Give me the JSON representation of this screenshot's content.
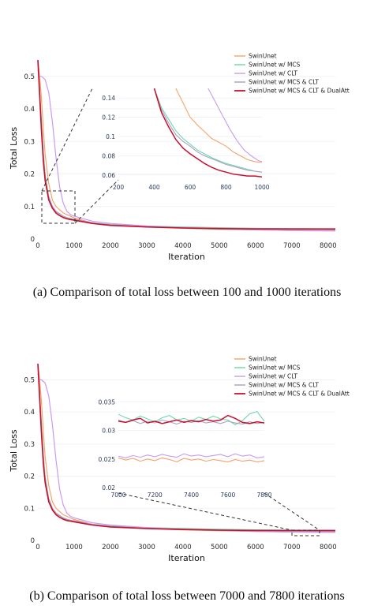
{
  "colors": {
    "swinunet": "#f4a46a",
    "mcs": "#6fd6ab",
    "clt": "#c79cf0",
    "mcs_clt": "#a9a0c4",
    "dualatt": "#c8102e"
  },
  "captions": {
    "a": "(a) Comparison of total loss between 100 and 1000 iterations",
    "b": "(b) Comparison of total loss between 7000 and 7800 iterations"
  },
  "chart_data": [
    {
      "type": "line",
      "xlabel": "Iteration",
      "ylabel": "Total Loss",
      "xlim": [
        0,
        8200
      ],
      "ylim": [
        0,
        0.56
      ],
      "x_ticks": [
        "0",
        "1000",
        "2000",
        "3000",
        "4000",
        "5000",
        "6000",
        "7000",
        "8000"
      ],
      "y_ticks": [
        "0",
        "0.1",
        "0.2",
        "0.3",
        "0.4",
        "0.5"
      ],
      "legend": [
        "SwinUnet",
        "SwinUnet w/ MCS",
        "SwinUnet w/ CLT",
        "SwinUnet w/ MCS & CLT",
        "SwinUnet w/ MCS & CLT & DualAtt"
      ],
      "series": [
        {
          "name": "SwinUnet",
          "x": [
            0,
            50,
            100,
            150,
            200,
            300,
            400,
            500,
            600,
            700,
            800,
            900,
            1000,
            1500,
            2000,
            3000,
            4000,
            5000,
            6000,
            7000,
            8200
          ],
          "y": [
            0.55,
            0.5,
            0.43,
            0.34,
            0.26,
            0.17,
            0.12,
            0.1,
            0.09,
            0.08,
            0.075,
            0.07,
            0.065,
            0.05,
            0.043,
            0.037,
            0.033,
            0.03,
            0.028,
            0.026,
            0.025
          ]
        },
        {
          "name": "SwinUnet w/ MCS",
          "x": [
            0,
            50,
            100,
            150,
            200,
            300,
            400,
            500,
            600,
            700,
            800,
            900,
            1000,
            1500,
            2000,
            3000,
            4000,
            5000,
            6000,
            7000,
            8200
          ],
          "y": [
            0.55,
            0.46,
            0.36,
            0.27,
            0.2,
            0.13,
            0.1,
            0.085,
            0.078,
            0.07,
            0.065,
            0.062,
            0.06,
            0.05,
            0.045,
            0.04,
            0.037,
            0.035,
            0.033,
            0.032,
            0.031
          ]
        },
        {
          "name": "SwinUnet w/ CLT",
          "x": [
            0,
            50,
            100,
            200,
            300,
            400,
            500,
            600,
            700,
            800,
            900,
            1000,
            1500,
            2000,
            3000,
            4000,
            5000,
            6000,
            7000,
            8200
          ],
          "y": [
            0.52,
            0.5,
            0.5,
            0.49,
            0.45,
            0.36,
            0.25,
            0.16,
            0.11,
            0.085,
            0.075,
            0.07,
            0.055,
            0.048,
            0.04,
            0.035,
            0.031,
            0.028,
            0.026,
            0.025
          ]
        },
        {
          "name": "SwinUnet w/ MCS & CLT",
          "x": [
            0,
            50,
            100,
            150,
            200,
            300,
            400,
            500,
            600,
            700,
            800,
            900,
            1000,
            1500,
            2000,
            3000,
            4000,
            5000,
            6000,
            7000,
            8200
          ],
          "y": [
            0.55,
            0.45,
            0.35,
            0.26,
            0.19,
            0.13,
            0.1,
            0.085,
            0.077,
            0.07,
            0.066,
            0.063,
            0.061,
            0.05,
            0.044,
            0.038,
            0.035,
            0.033,
            0.031,
            0.029,
            0.028
          ]
        },
        {
          "name": "SwinUnet w/ MCS & CLT & DualAtt",
          "x": [
            0,
            50,
            100,
            150,
            200,
            300,
            400,
            500,
            600,
            700,
            800,
            900,
            1000,
            1500,
            2000,
            3000,
            4000,
            5000,
            6000,
            7000,
            8200
          ],
          "y": [
            0.55,
            0.44,
            0.33,
            0.24,
            0.18,
            0.12,
            0.095,
            0.08,
            0.072,
            0.066,
            0.062,
            0.06,
            0.058,
            0.048,
            0.042,
            0.037,
            0.034,
            0.032,
            0.031,
            0.031,
            0.031
          ]
        }
      ],
      "inset": {
        "xlim": [
          200,
          1000
        ],
        "ylim": [
          0.055,
          0.15
        ],
        "x_ticks": [
          "200",
          "400",
          "600",
          "800",
          "1000"
        ],
        "y_ticks": [
          "0.06",
          "0.08",
          "0.1",
          "0.12",
          "0.14"
        ],
        "series": [
          {
            "name": "SwinUnet",
            "x": [
              520,
              560,
              600,
              640,
              680,
              720,
              760,
              800,
              840,
              880,
              920,
              960,
              1000
            ],
            "y": [
              0.15,
              0.135,
              0.12,
              0.112,
              0.105,
              0.098,
              0.094,
              0.09,
              0.084,
              0.08,
              0.076,
              0.074,
              0.073
            ]
          },
          {
            "name": "SwinUnet w/ MCS",
            "x": [
              400,
              440,
              480,
              520,
              560,
              600,
              640,
              680,
              720,
              760,
              800,
              840,
              880,
              920,
              960,
              1000
            ],
            "y": [
              0.15,
              0.13,
              0.118,
              0.106,
              0.098,
              0.092,
              0.086,
              0.082,
              0.078,
              0.075,
              0.072,
              0.07,
              0.068,
              0.066,
              0.064,
              0.063
            ]
          },
          {
            "name": "SwinUnet w/ CLT",
            "x": [
              700,
              740,
              780,
              820,
              860,
              900,
              940,
              980,
              1000
            ],
            "y": [
              0.15,
              0.136,
              0.122,
              0.108,
              0.096,
              0.086,
              0.08,
              0.075,
              0.074
            ]
          },
          {
            "name": "SwinUnet w/ MCS & CLT",
            "x": [
              400,
              440,
              480,
              520,
              560,
              600,
              640,
              680,
              720,
              760,
              800,
              840,
              880,
              920,
              960,
              1000
            ],
            "y": [
              0.15,
              0.128,
              0.114,
              0.102,
              0.095,
              0.09,
              0.084,
              0.08,
              0.077,
              0.074,
              0.071,
              0.069,
              0.067,
              0.065,
              0.064,
              0.063
            ]
          },
          {
            "name": "SwinUnet w/ MCS & CLT & DualAtt",
            "x": [
              400,
              440,
              480,
              520,
              560,
              600,
              640,
              680,
              720,
              760,
              800,
              840,
              880,
              920,
              960,
              1000
            ],
            "y": [
              0.15,
              0.125,
              0.11,
              0.097,
              0.088,
              0.082,
              0.077,
              0.072,
              0.068,
              0.065,
              0.063,
              0.061,
              0.06,
              0.059,
              0.059,
              0.058
            ]
          }
        ]
      }
    },
    {
      "type": "line",
      "xlabel": "Iteration",
      "ylabel": "Total Loss",
      "xlim": [
        0,
        8200
      ],
      "ylim": [
        0,
        0.56
      ],
      "x_ticks": [
        "0",
        "1000",
        "2000",
        "3000",
        "4000",
        "5000",
        "6000",
        "7000",
        "8000"
      ],
      "y_ticks": [
        "0",
        "0.1",
        "0.2",
        "0.3",
        "0.4",
        "0.5"
      ],
      "legend": [
        "SwinUnet",
        "SwinUnet w/ MCS",
        "SwinUnet w/ CLT",
        "SwinUnet w/ MCS & CLT",
        "SwinUnet w/ MCS & CLT & DualAtt"
      ],
      "series_ref": "same as chart 1",
      "inset": {
        "xlim": [
          7000,
          7800
        ],
        "ylim": [
          0.02,
          0.036
        ],
        "x_ticks": [
          "7000",
          "7200",
          "7400",
          "7600",
          "7800"
        ],
        "y_ticks": [
          "0.02",
          "0.025",
          "0.03",
          "0.035"
        ],
        "series": [
          {
            "name": "SwinUnet",
            "x": [
              7000,
              7040,
              7080,
              7120,
              7160,
              7200,
              7240,
              7280,
              7320,
              7360,
              7400,
              7440,
              7480,
              7520,
              7560,
              7600,
              7640,
              7680,
              7720,
              7760,
              7800
            ],
            "y": [
              0.0252,
              0.0248,
              0.0251,
              0.0246,
              0.025,
              0.0247,
              0.0252,
              0.0249,
              0.0245,
              0.0251,
              0.0248,
              0.025,
              0.0246,
              0.0249,
              0.0247,
              0.0245,
              0.0249,
              0.0246,
              0.0248,
              0.0245,
              0.0247
            ]
          },
          {
            "name": "SwinUnet w/ MCS",
            "x": [
              7000,
              7040,
              7080,
              7120,
              7160,
              7200,
              7240,
              7280,
              7320,
              7360,
              7400,
              7440,
              7480,
              7520,
              7560,
              7600,
              7640,
              7680,
              7720,
              7760,
              7800
            ],
            "y": [
              0.0328,
              0.0322,
              0.0318,
              0.0325,
              0.032,
              0.0315,
              0.0322,
              0.0326,
              0.0318,
              0.0321,
              0.0316,
              0.0323,
              0.0319,
              0.0325,
              0.032,
              0.0318,
              0.031,
              0.0317,
              0.0329,
              0.0333,
              0.0316
            ]
          },
          {
            "name": "SwinUnet w/ CLT",
            "x": [
              7000,
              7040,
              7080,
              7120,
              7160,
              7200,
              7240,
              7280,
              7320,
              7360,
              7400,
              7440,
              7480,
              7520,
              7560,
              7600,
              7640,
              7680,
              7720,
              7760,
              7800
            ],
            "y": [
              0.0255,
              0.0252,
              0.0256,
              0.0253,
              0.0257,
              0.0254,
              0.0258,
              0.0255,
              0.0253,
              0.0259,
              0.0255,
              0.0257,
              0.0254,
              0.0256,
              0.0258,
              0.0254,
              0.0259,
              0.0255,
              0.0257,
              0.0252,
              0.0254
            ]
          },
          {
            "name": "SwinUnet w/ MCS & CLT",
            "x": [
              7000,
              7040,
              7080,
              7120,
              7160,
              7200,
              7240,
              7280,
              7320,
              7360,
              7400,
              7440,
              7480,
              7520,
              7560,
              7600,
              7640,
              7680,
              7720,
              7760,
              7800
            ],
            "y": [
              0.0318,
              0.0314,
              0.0317,
              0.0312,
              0.0316,
              0.0313,
              0.0318,
              0.0315,
              0.0311,
              0.0316,
              0.0314,
              0.0317,
              0.0313,
              0.0315,
              0.0312,
              0.0316,
              0.0313,
              0.0311,
              0.0315,
              0.0312,
              0.0314
            ]
          },
          {
            "name": "SwinUnet w/ MCS & CLT & DualAtt",
            "x": [
              7000,
              7040,
              7080,
              7120,
              7160,
              7200,
              7240,
              7280,
              7320,
              7360,
              7400,
              7440,
              7480,
              7520,
              7560,
              7600,
              7640,
              7680,
              7720,
              7760,
              7800
            ],
            "y": [
              0.0316,
              0.0314,
              0.0318,
              0.0321,
              0.0313,
              0.0316,
              0.0312,
              0.0315,
              0.0318,
              0.0314,
              0.0317,
              0.0315,
              0.0319,
              0.0316,
              0.0318,
              0.0326,
              0.0321,
              0.0314,
              0.0312,
              0.0315,
              0.0313
            ]
          }
        ]
      }
    }
  ]
}
